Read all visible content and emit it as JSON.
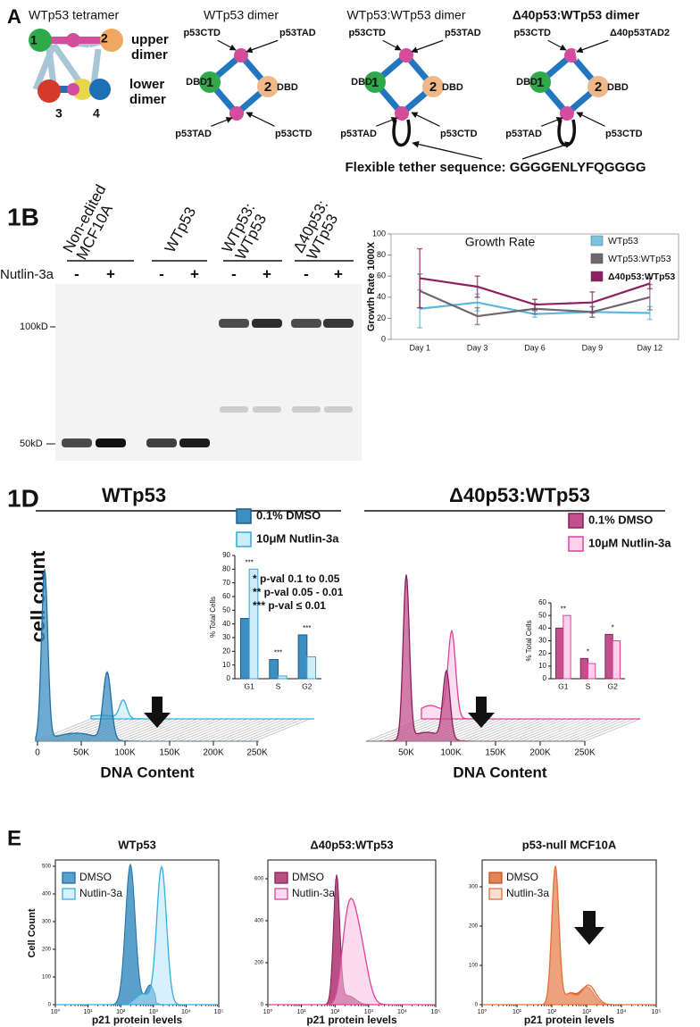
{
  "panel_a": {
    "label": "A",
    "tetramer_title": "WTp53 tetramer",
    "tetramer_numbers": [
      "1",
      "2",
      "3",
      "4"
    ],
    "upper_dimer": [
      "upper",
      "dimer"
    ],
    "lower_dimer": [
      "lower",
      "dimer"
    ],
    "dimers": [
      {
        "title": "WTp53 dimer",
        "labels": [
          "p53CTD",
          "p53TAD",
          "DBD",
          "DBD",
          "p53TAD",
          "p53CTD"
        ],
        "numbers": [
          "1",
          "2"
        ]
      },
      {
        "title": "WTp53:WTp53 dimer",
        "labels": [
          "p53CTD",
          "p53TAD",
          "DBD",
          "DBD",
          "p53TAD",
          "p53CTD"
        ],
        "numbers": [
          "1",
          "2"
        ]
      },
      {
        "title": "Δ40p53:WTp53 dimer",
        "labels": [
          "p53CTD",
          "Δ40p53TAD2",
          "DBD",
          "DBD",
          "p53TAD",
          "p53CTD"
        ],
        "numbers": [
          "1",
          "2"
        ]
      }
    ],
    "tether": "Flexible tether sequence: GGGGENLYFQGGGG"
  },
  "panel_1b": {
    "label": "1B",
    "lanes": [
      [
        "Non-edited",
        "MCF10A"
      ],
      [
        "WTp53"
      ],
      [
        "WTp53:",
        "WTp53"
      ],
      [
        "Δ40p53:",
        "WTp53"
      ]
    ],
    "treatment": "Nutlin-3a",
    "signs": [
      "-",
      "+",
      "-",
      "+",
      "-",
      "+",
      "-",
      "+"
    ],
    "markers": [
      "100kD",
      "50kD"
    ]
  },
  "chart_data": [
    {
      "type": "line",
      "title": "Growth Rate",
      "y_label": "Growth Rate 1000X",
      "categories": [
        "Day 1",
        "Day 3",
        "Day 6",
        "Day 9",
        "Day 12"
      ],
      "ylim": [
        0,
        100
      ],
      "yticks": [
        0,
        20,
        40,
        60,
        80,
        100
      ],
      "legend": "top-right",
      "series": [
        {
          "name": "WTp53",
          "color": "#5ab6dc",
          "values": [
            29,
            35,
            24,
            26,
            25
          ],
          "errors": [
            18,
            8,
            3,
            5,
            6
          ]
        },
        {
          "name": "WTp53:WTp53",
          "color": "#6f6670",
          "values": [
            46,
            22,
            29,
            26,
            40
          ],
          "errors": [
            16,
            8,
            5,
            5,
            12
          ]
        },
        {
          "name": "Δ40p53:WTp53",
          "color": "#8e1f60",
          "values": [
            58,
            50,
            33,
            35,
            53
          ],
          "errors": [
            28,
            10,
            5,
            10,
            5
          ]
        }
      ]
    },
    {
      "type": "bar",
      "y_label": "% Total Cells",
      "categories": [
        "G1",
        "S",
        "G2"
      ],
      "ylim": [
        0,
        90
      ],
      "yticks": [
        0,
        10,
        20,
        30,
        40,
        50,
        60,
        70,
        80,
        90
      ],
      "annotations": [
        "***",
        "***",
        "***"
      ],
      "series": [
        {
          "name": "0.1% DMSO",
          "color": "#3c8fc2",
          "values": [
            44,
            14,
            32
          ]
        },
        {
          "name": "10μM Nutlin-3a",
          "color": "#cbeefa",
          "values": [
            80,
            2,
            16
          ]
        }
      ]
    },
    {
      "type": "bar",
      "y_label": "% Total Cells",
      "categories": [
        "G1",
        "S",
        "G2"
      ],
      "ylim": [
        0,
        60
      ],
      "yticks": [
        0,
        10,
        20,
        30,
        40,
        50,
        60
      ],
      "annotations": [
        "**",
        "*",
        "*"
      ],
      "series": [
        {
          "name": "0.1% DMSO",
          "color": "#c2508c",
          "values": [
            40,
            16,
            35
          ]
        },
        {
          "name": "10μM Nutlin-3a",
          "color": "#fcd2ea",
          "values": [
            50,
            12,
            30
          ]
        }
      ]
    }
  ],
  "panel_1d": {
    "label": "1D",
    "titles": [
      "WTp53",
      "Δ40p53:WTp53"
    ],
    "y_label": "cell count",
    "x_label": "DNA Content",
    "left_ticks": [
      "0",
      "50K",
      "100K",
      "150K",
      "200K",
      "250K"
    ],
    "right_ticks": [
      "50K",
      "100K",
      "150K",
      "200K",
      "250K"
    ],
    "pval_legend": [
      "* p-val  0.1 to 0.05",
      "** p-val 0.05 - 0.01",
      "*** p-val ≤ 0.01"
    ]
  },
  "panel_e": {
    "label": "E",
    "y_label": "Cell Count",
    "x_label": "p21 protein levels",
    "x_ticks": [
      "10⁰",
      "10¹",
      "10²",
      "10³",
      "10⁴",
      "10⁵"
    ],
    "plots": [
      {
        "title": "WTp53",
        "legend": [
          "DMSO",
          "Nutlin-3a"
        ],
        "y_ticks": [
          0,
          100,
          200,
          300,
          400,
          500
        ]
      },
      {
        "title": "Δ40p53:WTp53",
        "legend": [
          "DMSO",
          "Nutlin-3a"
        ],
        "y_ticks": [
          0,
          200,
          400,
          600
        ]
      },
      {
        "title": "p53-null MCF10A",
        "legend": [
          "DMSO",
          "Nutlin-3a"
        ],
        "y_ticks": [
          0,
          100,
          200,
          300
        ]
      }
    ]
  }
}
